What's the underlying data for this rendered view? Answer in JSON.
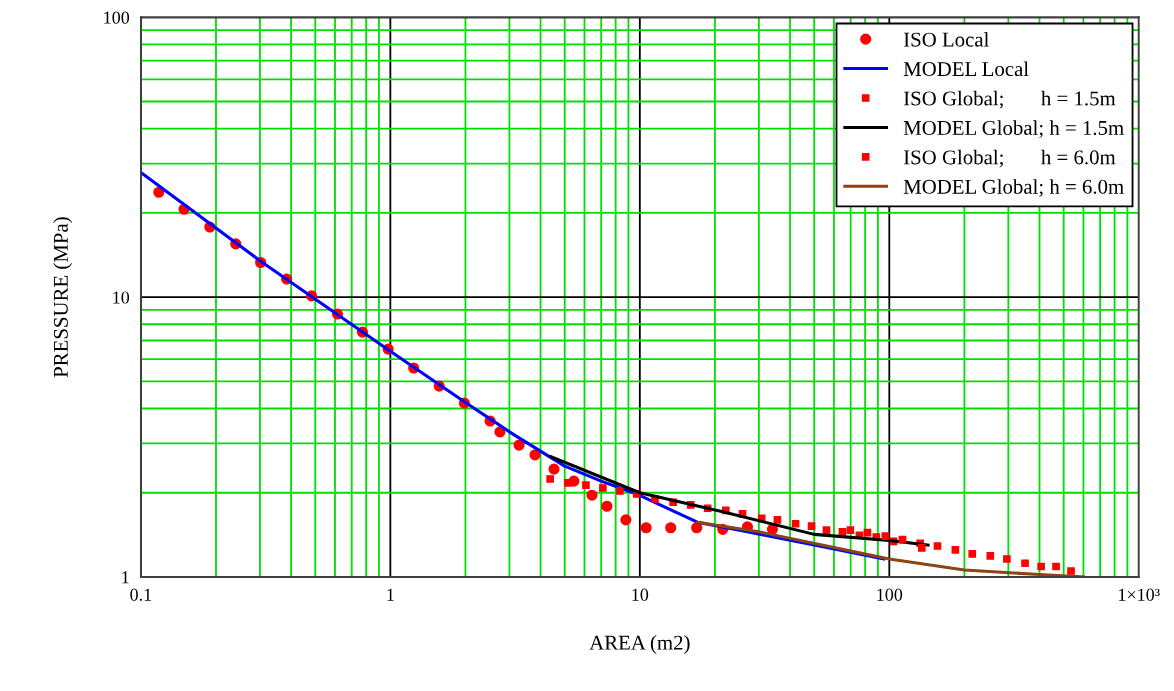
{
  "chart_data": {
    "type": "line",
    "xlabel": "AREA (m2)",
    "ylabel": "PRESSURE (MPa)",
    "log": "xy",
    "grid": true,
    "legend": "top right",
    "xlim": [
      0.1,
      1000
    ],
    "xticks": [
      0.1,
      {
        "value": 0.2,
        "label": null
      },
      {
        "value": 0.3,
        "label": null
      },
      {
        "value": 0.4,
        "label": null
      },
      {
        "value": 0.5,
        "label": null
      },
      {
        "value": 0.6,
        "label": null
      },
      {
        "value": 0.7,
        "label": null
      },
      {
        "value": 0.8,
        "label": null
      },
      {
        "value": 0.9,
        "label": null
      },
      1,
      {
        "value": 2,
        "label": null
      },
      {
        "value": 3,
        "label": null
      },
      {
        "value": 4,
        "label": null
      },
      {
        "value": 5,
        "label": null
      },
      {
        "value": 6,
        "label": null
      },
      {
        "value": 7,
        "label": null
      },
      {
        "value": 8,
        "label": null
      },
      {
        "value": 9,
        "label": null
      },
      10,
      {
        "value": 20,
        "label": null
      },
      {
        "value": 30,
        "label": null
      },
      {
        "value": 40,
        "label": null
      },
      {
        "value": 50,
        "label": null
      },
      {
        "value": 60,
        "label": null
      },
      {
        "value": 70,
        "label": null
      },
      {
        "value": 80,
        "label": null
      },
      {
        "value": 90,
        "label": null
      },
      100,
      {
        "value": 200,
        "label": null
      },
      {
        "value": 300,
        "label": null
      },
      {
        "value": 400,
        "label": null
      },
      {
        "value": 500,
        "label": null
      },
      {
        "value": 600,
        "label": null
      },
      {
        "value": 700,
        "label": null
      },
      {
        "value": 800,
        "label": null
      },
      {
        "value": 900,
        "label": null
      },
      {
        "value": 1000,
        "label": "1×10³"
      }
    ],
    "ylim": [
      1,
      100
    ],
    "yticks": [
      1,
      {
        "value": 2,
        "label": null
      },
      {
        "value": 3,
        "label": null
      },
      {
        "value": 4,
        "label": null
      },
      {
        "value": 5,
        "label": null
      },
      {
        "value": 6,
        "label": null
      },
      {
        "value": 7,
        "label": null
      },
      {
        "value": 8,
        "label": null
      },
      {
        "value": 9,
        "label": null
      },
      10,
      {
        "value": 20,
        "label": null
      },
      {
        "value": 30,
        "label": null
      },
      {
        "value": 40,
        "label": null
      },
      {
        "value": 50,
        "label": null
      },
      {
        "value": 60,
        "label": null
      },
      {
        "value": 70,
        "label": null
      },
      {
        "value": 80,
        "label": null
      },
      {
        "value": 90,
        "label": null
      },
      100
    ],
    "series": [
      {
        "name": "ISO Local",
        "type": "scatter",
        "marker": "circle",
        "color": "#ff0000",
        "x": [
          0.118,
          0.149,
          0.189,
          0.24,
          0.302,
          0.384,
          0.483,
          0.614,
          0.773,
          0.98,
          1.24,
          1.57,
          1.98,
          2.51,
          2.75,
          3.28,
          3.8,
          4.53,
          5.44,
          6.43,
          7.38,
          8.79,
          10.6,
          13.3,
          16.9,
          21.5,
          27.0,
          34.0
        ],
        "values": [
          23.7,
          20.6,
          17.8,
          15.5,
          13.3,
          11.6,
          10.1,
          8.7,
          7.5,
          6.52,
          5.58,
          4.81,
          4.18,
          3.61,
          3.3,
          2.96,
          2.73,
          2.43,
          2.2,
          1.96,
          1.79,
          1.6,
          1.5,
          1.5,
          1.5,
          1.48,
          1.51,
          1.48
        ]
      },
      {
        "name": "MODEL Local",
        "color": "#0000ff",
        "x": [
          0.1,
          0.3,
          1,
          2,
          3.1,
          5,
          7,
          9.7,
          17,
          27,
          50,
          95
        ],
        "values": [
          27.9,
          13.5,
          6.41,
          4.2,
          3.24,
          2.49,
          2.2,
          1.98,
          1.57,
          1.45,
          1.3,
          1.16
        ]
      },
      {
        "name": "ISO Global;       h = 1.5m",
        "type": "scatter",
        "marker": "square",
        "color": "#ff0000",
        "x": [
          4.37,
          5.15,
          6.08,
          7.11,
          8.32,
          9.72,
          11.5,
          13.6,
          16.0,
          18.7,
          22.1,
          25.8,
          30.8,
          35.6,
          42.1,
          48.8,
          56.0,
          64.9,
          75.9,
          88.7,
          104,
          133
        ],
        "values": [
          2.24,
          2.17,
          2.13,
          2.08,
          2.03,
          1.98,
          1.9,
          1.85,
          1.81,
          1.76,
          1.73,
          1.68,
          1.62,
          1.6,
          1.55,
          1.52,
          1.47,
          1.45,
          1.41,
          1.39,
          1.34,
          1.32
        ]
      },
      {
        "name": "MODEL Global; h = 1.5m",
        "color": "#000000",
        "x": [
          4.4,
          10,
          21.5,
          50,
          100,
          143
        ],
        "values": [
          2.69,
          2.0,
          1.71,
          1.42,
          1.35,
          1.3
        ]
      },
      {
        "name": "ISO Global;       h = 6.0m",
        "type": "scatter",
        "marker": "square",
        "color": "#ff0000",
        "x": [
          69.8,
          81.7,
          96.4,
          113,
          135,
          156,
          184,
          215,
          254,
          296,
          350,
          406,
          466,
          535
        ],
        "values": [
          1.47,
          1.44,
          1.4,
          1.36,
          1.27,
          1.29,
          1.25,
          1.21,
          1.19,
          1.16,
          1.12,
          1.09,
          1.09,
          1.05
        ]
      },
      {
        "name": "MODEL Global; h = 6.0m",
        "color": "#8b4513",
        "x": [
          17,
          30,
          100,
          200,
          400,
          600
        ],
        "values": [
          1.57,
          1.45,
          1.16,
          1.06,
          1.02,
          1.0
        ]
      }
    ]
  }
}
